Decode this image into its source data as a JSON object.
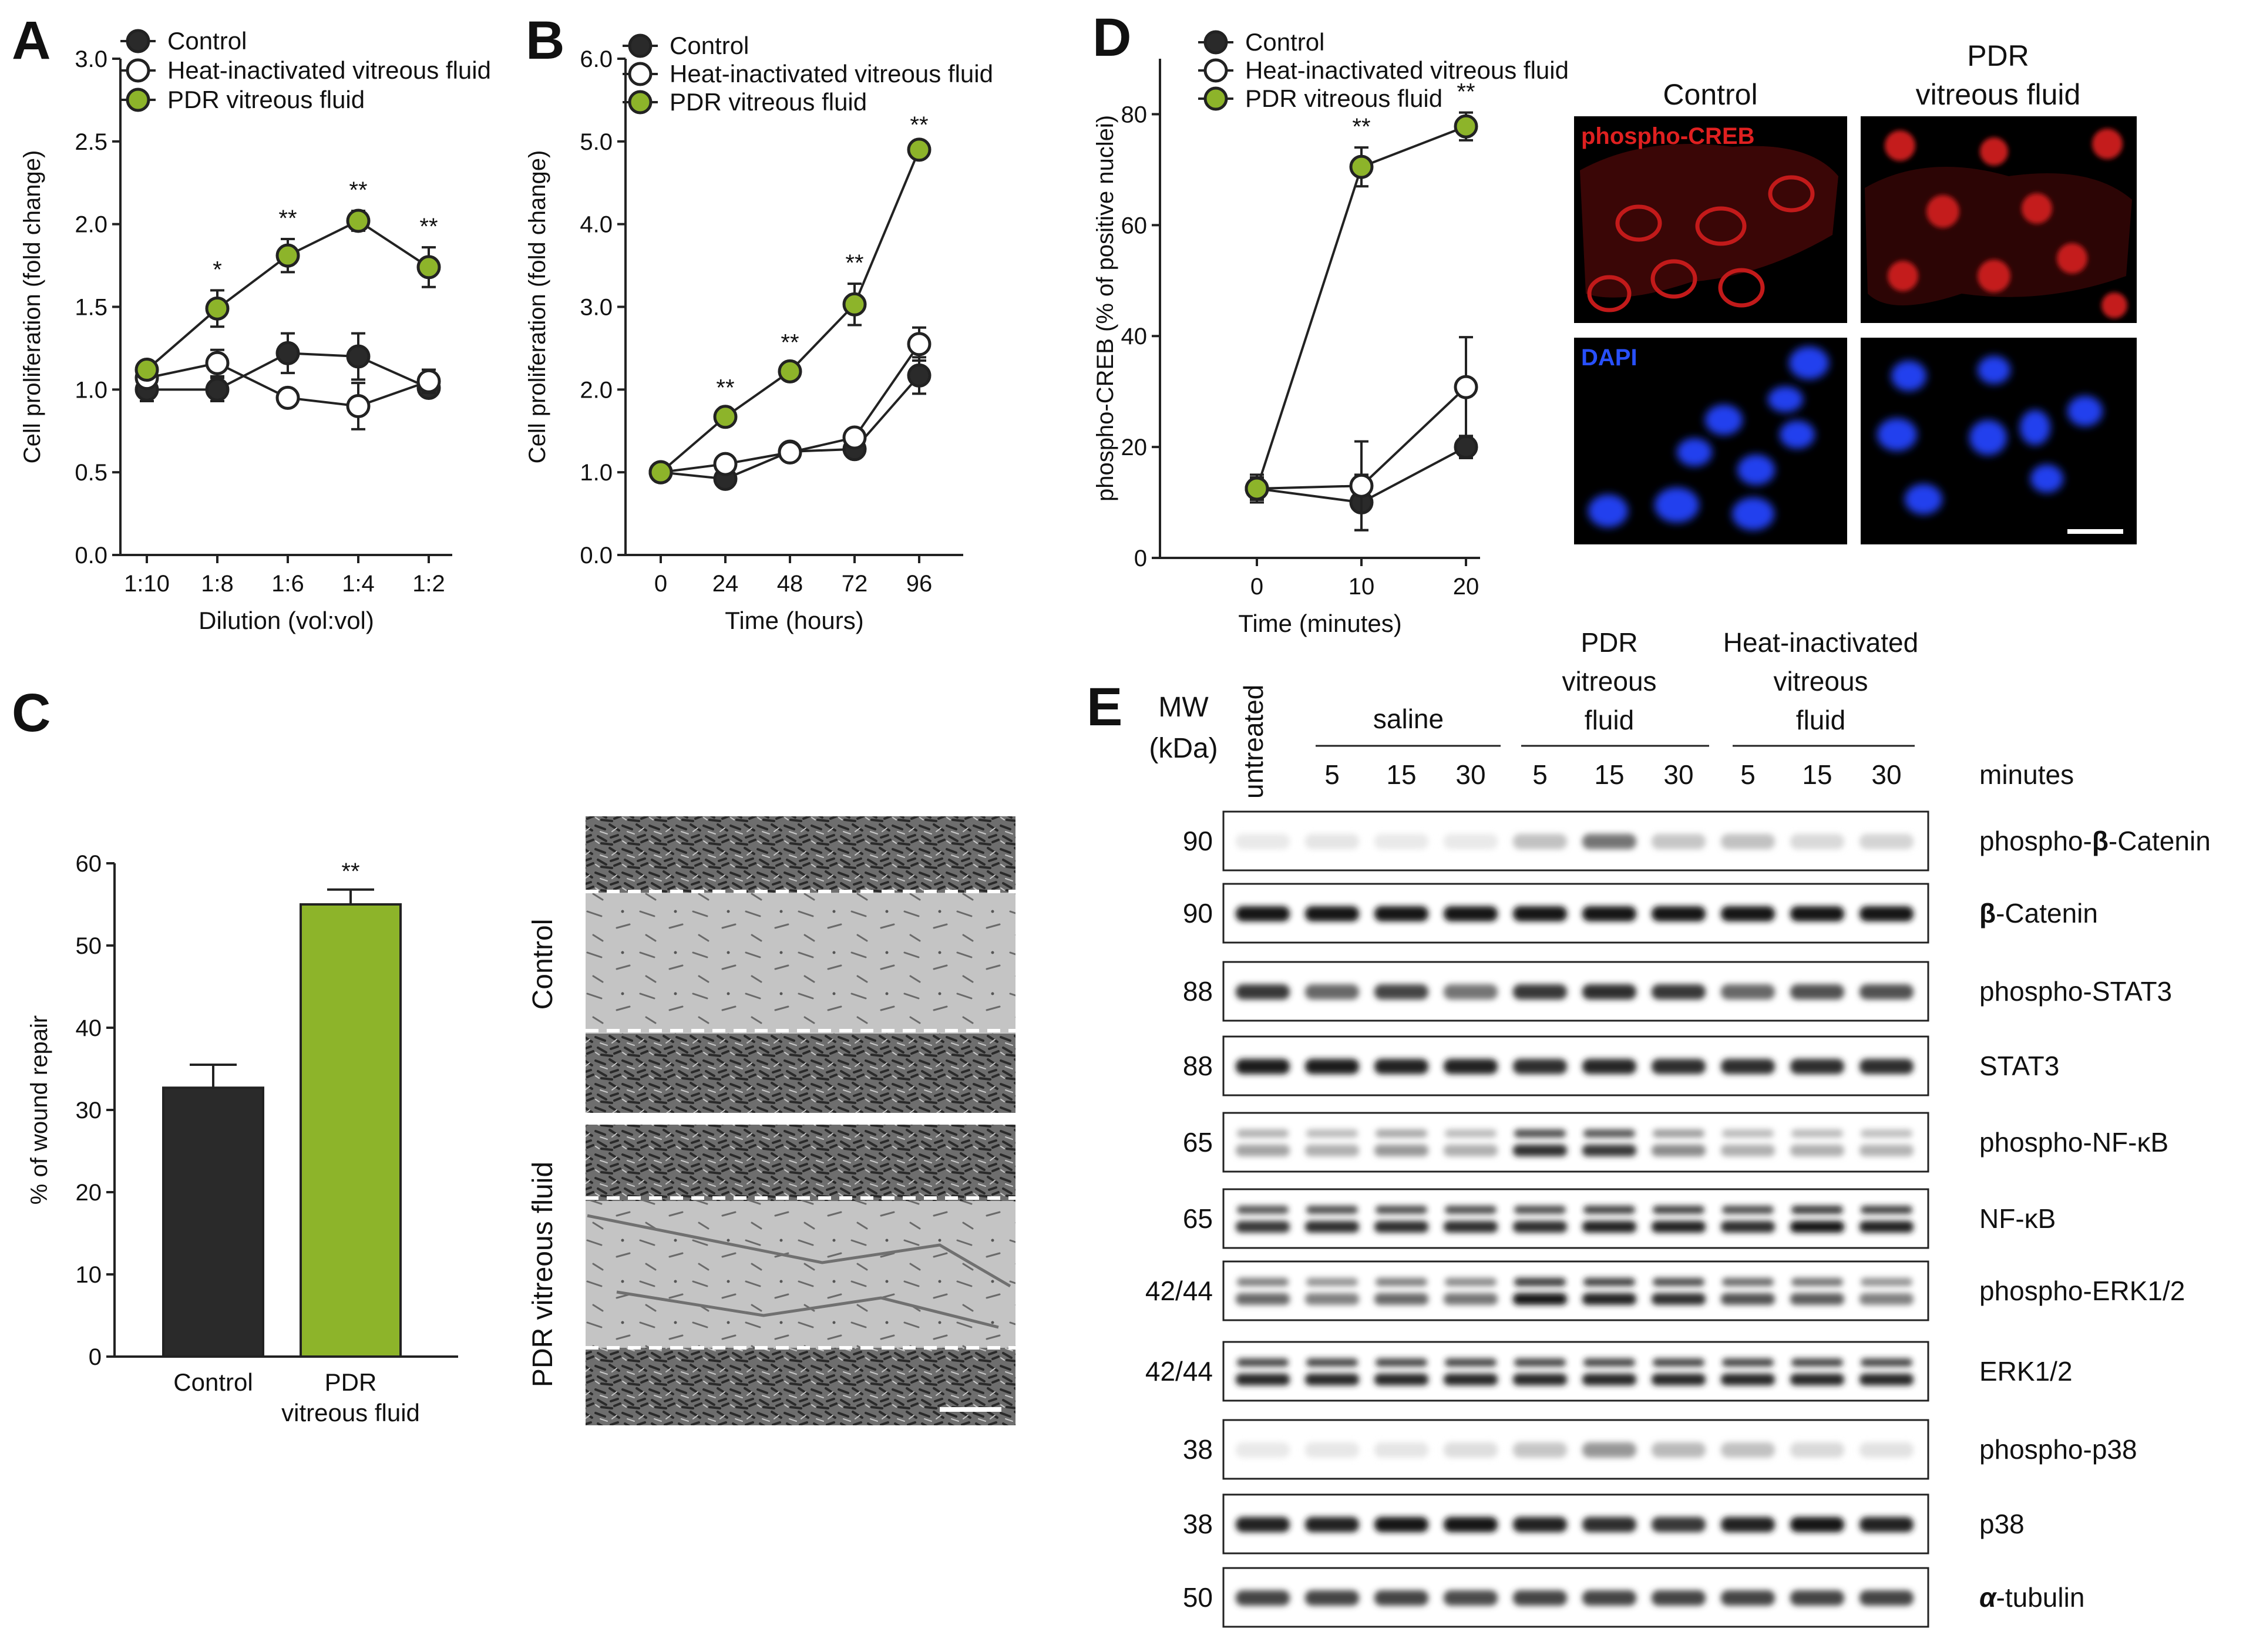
{
  "colors": {
    "control": "#2a2a2a",
    "heat": "#ffffff",
    "pdr": "#8db42a",
    "axis": "#222222",
    "red_stain": "#d01818",
    "blue_stain": "#1f3de0"
  },
  "panel_labels": [
    "A",
    "B",
    "C",
    "D",
    "E"
  ],
  "chart_data": [
    {
      "id": "A",
      "type": "line",
      "xlabel": "Dilution (vol:vol)",
      "ylabel": "Cell proliferation (fold change)",
      "categories": [
        "1:10",
        "1:8",
        "1:6",
        "1:4",
        "1:2"
      ],
      "ylim": [
        0,
        3.0
      ],
      "yticks": [
        "0.0",
        "0.5",
        "1.0",
        "1.5",
        "2.0",
        "2.5",
        "3.0"
      ],
      "legend": [
        "Control",
        "Heat-inactivated vitreous fluid",
        "PDR vitreous fluid"
      ],
      "series": [
        {
          "name": "Control",
          "values": [
            1.0,
            1.0,
            1.22,
            1.2,
            1.01
          ],
          "err": [
            0.07,
            0.07,
            0.12,
            0.14,
            0.04
          ]
        },
        {
          "name": "Heat-inactivated vitreous fluid",
          "values": [
            1.07,
            1.16,
            0.95,
            0.9,
            1.05
          ],
          "err": [
            0.05,
            0.08,
            0.04,
            0.14,
            0.07
          ]
        },
        {
          "name": "PDR vitreous fluid",
          "values": [
            1.12,
            1.49,
            1.81,
            2.02,
            1.74
          ],
          "err": [
            0.04,
            0.11,
            0.1,
            0.06,
            0.12
          ]
        }
      ],
      "annotations": [
        "",
        "*",
        "**",
        "**",
        "**"
      ]
    },
    {
      "id": "B",
      "type": "line",
      "xlabel": "Time (hours)",
      "ylabel": "Cell proliferation (fold change)",
      "x": [
        0,
        24,
        48,
        72,
        96
      ],
      "categories": [
        "0",
        "24",
        "48",
        "72",
        "96"
      ],
      "ylim": [
        0,
        6.0
      ],
      "yticks": [
        "0.0",
        "1.0",
        "2.0",
        "3.0",
        "4.0",
        "5.0",
        "6.0"
      ],
      "legend": [
        "Control",
        "Heat-inactivated vitreous fluid",
        "PDR vitreous fluid"
      ],
      "series": [
        {
          "name": "Control",
          "values": [
            1.0,
            0.92,
            1.25,
            1.28,
            2.17
          ],
          "err": [
            0.03,
            0.05,
            0.05,
            0.08,
            0.22
          ]
        },
        {
          "name": "Heat-inactivated vitreous fluid",
          "values": [
            1.0,
            1.1,
            1.24,
            1.42,
            2.55
          ],
          "err": [
            0.03,
            0.05,
            0.06,
            0.1,
            0.2
          ]
        },
        {
          "name": "PDR vitreous fluid",
          "values": [
            1.0,
            1.67,
            2.22,
            3.03,
            4.9
          ],
          "err": [
            0.03,
            0.1,
            0.1,
            0.25,
            0.05
          ]
        }
      ],
      "annotations": [
        "",
        "**",
        "**",
        "**",
        "**"
      ]
    },
    {
      "id": "C",
      "type": "bar",
      "ylabel": "% of wound repair",
      "categories": [
        "Control",
        "PDR vitreous fluid"
      ],
      "category_lines": [
        [
          "Control"
        ],
        [
          "PDR",
          "vitreous fluid"
        ]
      ],
      "values": [
        32.7,
        55.0
      ],
      "err": [
        2.8,
        1.8
      ],
      "ylim": [
        0,
        60
      ],
      "yticks": [
        "0",
        "10",
        "20",
        "30",
        "40",
        "50",
        "60"
      ],
      "annotations": [
        "",
        "**"
      ]
    },
    {
      "id": "D",
      "type": "line",
      "xlabel": "Time (minutes)",
      "ylabel": "phospho-CREB (% of positive nuclei)",
      "x": [
        0,
        10,
        20
      ],
      "categories": [
        "0",
        "10",
        "20"
      ],
      "ylim": [
        0,
        90
      ],
      "yticks": [
        "0",
        "20",
        "40",
        "60",
        "80"
      ],
      "legend": [
        "Control",
        "Heat-inactivated vitreous fluid",
        "PDR vitreous fluid"
      ],
      "series": [
        {
          "name": "Control",
          "values": [
            12.5,
            10.0,
            20.0
          ],
          "err": [
            2.5,
            5.0,
            2.0
          ]
        },
        {
          "name": "Heat-inactivated vitreous fluid",
          "values": [
            12.5,
            13.0,
            30.8
          ],
          "err": [
            2.0,
            8.0,
            9.0
          ]
        },
        {
          "name": "PDR vitreous fluid",
          "values": [
            12.5,
            70.5,
            77.8
          ],
          "err": [
            2.0,
            3.5,
            2.5
          ]
        }
      ],
      "annotations": [
        "",
        "**",
        "**"
      ]
    }
  ],
  "panel_c_images": {
    "row_labels": [
      "Control",
      "PDR vitreous fluid"
    ]
  },
  "panel_d_images": {
    "col_headers": [
      [
        "Control"
      ],
      [
        "PDR",
        "vitreous fluid"
      ]
    ],
    "row_labels": [
      "phospho-CREB",
      "DAPI"
    ]
  },
  "western": {
    "mw_header": [
      "MW",
      "(kDa)"
    ],
    "untreated": "untreated",
    "groups": [
      {
        "lines": [
          "saline"
        ]
      },
      {
        "lines": [
          "PDR",
          "vitreous",
          "fluid"
        ]
      },
      {
        "lines": [
          "Heat-inactivated",
          "vitreous",
          "fluid"
        ]
      }
    ],
    "lane_times": [
      "5",
      "15",
      "30",
      "5",
      "15",
      "30",
      "5",
      "15",
      "30"
    ],
    "minutes_label": "minutes",
    "rows": [
      {
        "mw": "90",
        "pre": "phospho-",
        "sym": "β",
        "post": "-Catenin",
        "intensity": [
          0.05,
          0.07,
          0.05,
          0.05,
          0.22,
          0.55,
          0.2,
          0.22,
          0.12,
          0.14
        ]
      },
      {
        "mw": "90",
        "pre": "",
        "sym": "β",
        "post": "-Catenin",
        "intensity": [
          0.95,
          0.95,
          0.95,
          0.95,
          0.95,
          0.95,
          0.95,
          0.95,
          0.95,
          0.95
        ]
      },
      {
        "mw": "88",
        "pre": "phospho-STAT3",
        "sym": "",
        "post": "",
        "intensity": [
          0.8,
          0.6,
          0.75,
          0.55,
          0.8,
          0.85,
          0.8,
          0.6,
          0.7,
          0.7
        ]
      },
      {
        "mw": "88",
        "pre": "STAT3",
        "sym": "",
        "post": "",
        "intensity": [
          0.92,
          0.92,
          0.9,
          0.9,
          0.85,
          0.88,
          0.85,
          0.85,
          0.85,
          0.85
        ]
      },
      {
        "mw": "65",
        "pre": "phospho-NF-κB",
        "sym": "",
        "post": "",
        "intensity": [
          0.35,
          0.3,
          0.4,
          0.3,
          0.85,
          0.8,
          0.45,
          0.3,
          0.3,
          0.28
        ]
      },
      {
        "mw": "65",
        "pre": "NF-κB",
        "sym": "",
        "post": "",
        "intensity": [
          0.8,
          0.85,
          0.85,
          0.85,
          0.85,
          0.9,
          0.9,
          0.85,
          0.95,
          0.9
        ]
      },
      {
        "mw": "42/44",
        "pre": "phospho-ERK1/2",
        "sym": "",
        "post": "",
        "intensity": [
          0.6,
          0.5,
          0.6,
          0.55,
          0.95,
          0.9,
          0.85,
          0.7,
          0.65,
          0.5
        ]
      },
      {
        "mw": "42/44",
        "pre": "ERK1/2",
        "sym": "",
        "post": "",
        "intensity": [
          0.88,
          0.88,
          0.88,
          0.88,
          0.88,
          0.88,
          0.88,
          0.88,
          0.88,
          0.88
        ]
      },
      {
        "mw": "38",
        "pre": "phospho-p38",
        "sym": "",
        "post": "",
        "intensity": [
          0.05,
          0.06,
          0.07,
          0.1,
          0.2,
          0.4,
          0.25,
          0.22,
          0.12,
          0.08
        ]
      },
      {
        "mw": "38",
        "pre": "p38",
        "sym": "",
        "post": "",
        "intensity": [
          0.9,
          0.9,
          0.95,
          0.95,
          0.9,
          0.85,
          0.8,
          0.9,
          0.95,
          0.9
        ]
      },
      {
        "mw": "50",
        "pre": "",
        "sym": "α",
        "post": "-tubulin",
        "intensity": [
          0.75,
          0.75,
          0.75,
          0.72,
          0.75,
          0.75,
          0.75,
          0.75,
          0.75,
          0.75
        ]
      }
    ]
  }
}
